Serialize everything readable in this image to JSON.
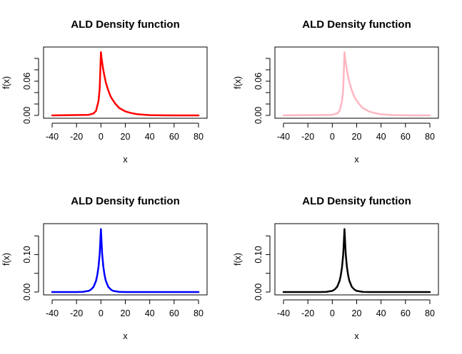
{
  "chart_data": [
    {
      "type": "line",
      "title": "ALD Density function",
      "xlabel": "x",
      "ylabel": "f(x)",
      "xlim": [
        -40,
        80
      ],
      "ylim": [
        0,
        0.115
      ],
      "x_ticks": [
        -40,
        -20,
        0,
        20,
        40,
        60,
        80
      ],
      "y_ticks": [
        0,
        0.02,
        0.04,
        0.06,
        0.08,
        0.1
      ],
      "y_tick_labels": [
        "0.00",
        "",
        "",
        "0.06",
        "",
        ""
      ],
      "series": [
        {
          "color": "#ff0000",
          "x": [
            -40,
            -10,
            -6,
            -4,
            -2,
            -1,
            0,
            0.5,
            1,
            2,
            3,
            4,
            6,
            8,
            10,
            12,
            15,
            20,
            25,
            30,
            40,
            50,
            60,
            80
          ],
          "y": [
            0,
            0.001,
            0.0035,
            0.008,
            0.025,
            0.047,
            0.111,
            0.101,
            0.093,
            0.079,
            0.068,
            0.058,
            0.044,
            0.033,
            0.026,
            0.02,
            0.013,
            0.007,
            0.004,
            0.002,
            0.0005,
            0.0001,
            0,
            0
          ]
        }
      ]
    },
    {
      "type": "line",
      "title": "ALD Density function",
      "xlabel": "x",
      "ylabel": "f(x)",
      "xlim": [
        -40,
        80
      ],
      "ylim": [
        0,
        0.115
      ],
      "x_ticks": [
        -40,
        -20,
        0,
        20,
        40,
        60,
        80
      ],
      "y_ticks": [
        0,
        0.02,
        0.04,
        0.06,
        0.08,
        0.1
      ],
      "y_tick_labels": [
        "0.00",
        "",
        "",
        "0.06",
        "",
        ""
      ],
      "series": [
        {
          "color": "#ffb6c1",
          "x": [
            -40,
            0,
            4,
            6,
            8,
            9,
            10,
            10.5,
            11,
            12,
            13,
            14,
            16,
            18,
            20,
            22,
            25,
            30,
            35,
            40,
            50,
            60,
            70,
            80
          ],
          "y": [
            0,
            0.001,
            0.0035,
            0.008,
            0.025,
            0.047,
            0.111,
            0.101,
            0.093,
            0.079,
            0.068,
            0.058,
            0.044,
            0.033,
            0.026,
            0.02,
            0.013,
            0.007,
            0.004,
            0.002,
            0.0005,
            0.0001,
            0,
            0
          ]
        }
      ]
    },
    {
      "type": "line",
      "title": "ALD Density function",
      "xlabel": "x",
      "ylabel": "f(x)",
      "xlim": [
        -40,
        80
      ],
      "ylim": [
        0,
        0.175
      ],
      "x_ticks": [
        -40,
        -20,
        0,
        20,
        40,
        60,
        80
      ],
      "y_ticks": [
        0,
        0.05,
        0.1,
        0.15
      ],
      "y_tick_labels": [
        "0.00",
        "",
        "0.10",
        ""
      ],
      "series": [
        {
          "color": "#0000ff",
          "x": [
            -40,
            -20,
            -15,
            -10,
            -8,
            -6,
            -4,
            -3,
            -2,
            -1,
            0,
            1,
            2,
            3,
            4,
            6,
            8,
            10,
            15,
            20,
            40,
            80
          ],
          "y": [
            0,
            0.0001,
            0.0005,
            0.003,
            0.007,
            0.014,
            0.03,
            0.045,
            0.067,
            0.102,
            0.168,
            0.102,
            0.067,
            0.045,
            0.03,
            0.014,
            0.007,
            0.003,
            0.0005,
            0.0001,
            0,
            0
          ]
        }
      ]
    },
    {
      "type": "line",
      "title": "ALD Density function",
      "xlabel": "x",
      "ylabel": "f(x)",
      "xlim": [
        -40,
        80
      ],
      "ylim": [
        0,
        0.175
      ],
      "x_ticks": [
        -40,
        -20,
        0,
        20,
        40,
        60,
        80
      ],
      "y_ticks": [
        0,
        0.05,
        0.1,
        0.15
      ],
      "y_tick_labels": [
        "0.00",
        "",
        "0.10",
        ""
      ],
      "series": [
        {
          "color": "#000000",
          "x": [
            -40,
            -10,
            -5,
            0,
            2,
            4,
            6,
            7,
            8,
            9,
            10,
            11,
            12,
            13,
            14,
            16,
            18,
            20,
            25,
            30,
            50,
            80
          ],
          "y": [
            0,
            0.0001,
            0.0005,
            0.003,
            0.007,
            0.014,
            0.03,
            0.045,
            0.067,
            0.102,
            0.168,
            0.102,
            0.067,
            0.045,
            0.03,
            0.014,
            0.007,
            0.003,
            0.0005,
            0.0001,
            0,
            0
          ]
        }
      ]
    }
  ]
}
